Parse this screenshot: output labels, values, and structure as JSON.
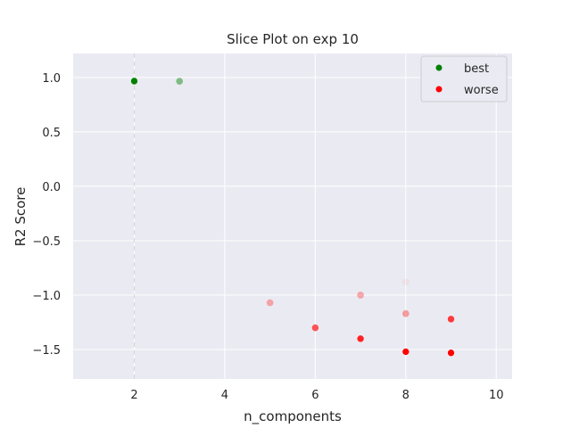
{
  "chart_data": {
    "type": "scatter",
    "title": "Slice Plot on exp 10",
    "xlabel": "n_components",
    "ylabel": "R2 Score",
    "xlim": [
      0.65,
      10.35
    ],
    "ylim": [
      -1.77,
      1.22
    ],
    "xticks": [
      2,
      4,
      6,
      8,
      10
    ],
    "yticks": [
      1.0,
      0.5,
      0.0,
      -0.5,
      -1.0,
      -1.5
    ],
    "grid": true,
    "legend_position": "top-right",
    "best_marker": 2,
    "series": [
      {
        "name": "best",
        "color": "#008000",
        "points": [
          {
            "x": 2,
            "y": 0.97,
            "alpha": 1.0
          },
          {
            "x": 2,
            "y": 0.965,
            "alpha": 0.7
          },
          {
            "x": 3,
            "y": 0.965,
            "alpha": 0.45
          }
        ]
      },
      {
        "name": "worse",
        "color": "#ff0000",
        "points": [
          {
            "x": 5,
            "y": -1.07,
            "alpha": 0.3
          },
          {
            "x": 6,
            "y": -1.3,
            "alpha": 0.65
          },
          {
            "x": 7,
            "y": -1.0,
            "alpha": 0.3
          },
          {
            "x": 7,
            "y": -1.4,
            "alpha": 0.85
          },
          {
            "x": 8,
            "y": -0.88,
            "alpha": 0.05
          },
          {
            "x": 8,
            "y": -1.17,
            "alpha": 0.35
          },
          {
            "x": 8,
            "y": -1.52,
            "alpha": 1.0
          },
          {
            "x": 9,
            "y": -1.22,
            "alpha": 0.75
          },
          {
            "x": 9,
            "y": -1.53,
            "alpha": 1.0
          }
        ]
      }
    ]
  }
}
